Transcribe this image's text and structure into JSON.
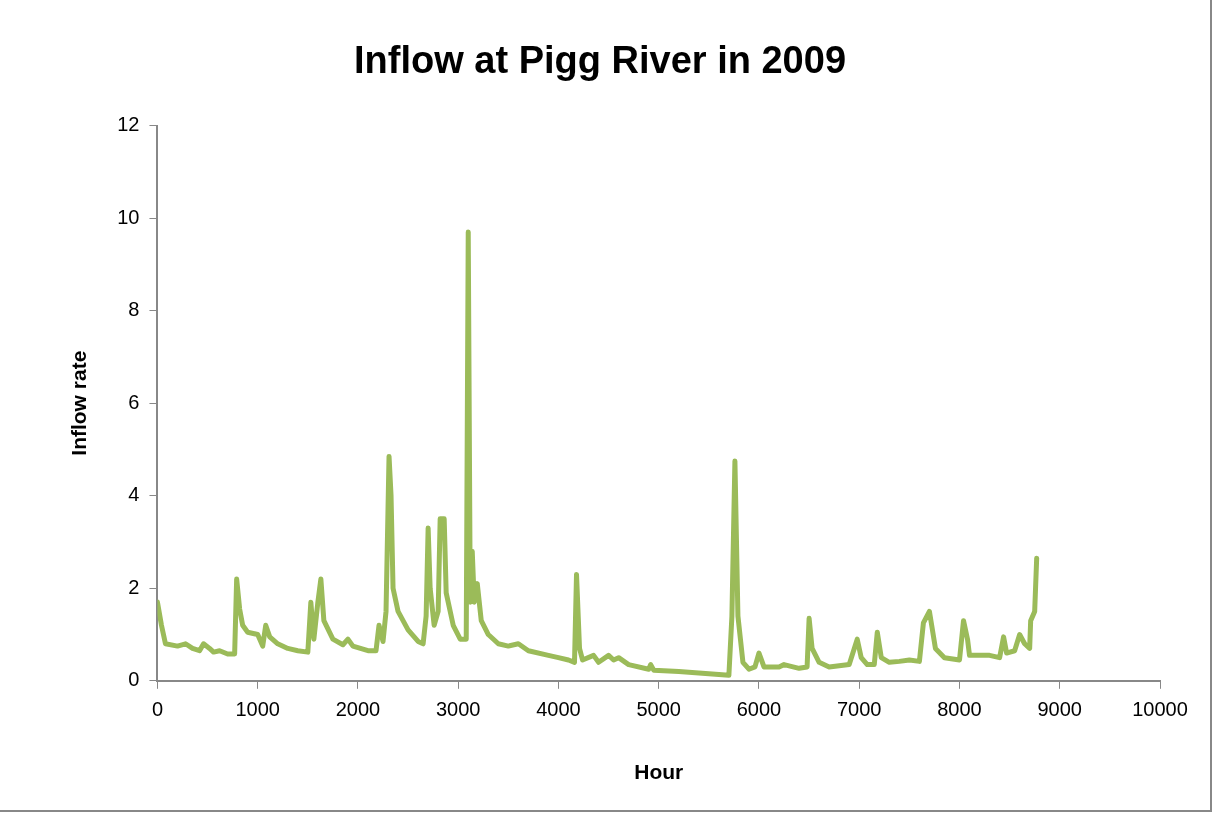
{
  "chart_data": {
    "type": "line",
    "title": "Inflow at Pigg River in 2009",
    "xlabel": "Hour",
    "ylabel": "Inflow rate",
    "xlim": [
      0,
      10000
    ],
    "xticks": [
      0,
      1000,
      2000,
      3000,
      4000,
      5000,
      6000,
      7000,
      8000,
      9000,
      10000
    ],
    "ylim": [
      0,
      12
    ],
    "yticks": [
      0,
      2,
      4,
      6,
      8,
      10,
      12
    ],
    "grid": false,
    "legend": false,
    "marker": "none",
    "line_style": "solid",
    "series": [
      {
        "color": "#9bbb59",
        "x": [
          0,
          40,
          80,
          200,
          280,
          350,
          420,
          460,
          520,
          560,
          620,
          700,
          770,
          790,
          820,
          850,
          900,
          1000,
          1050,
          1080,
          1120,
          1200,
          1300,
          1400,
          1500,
          1530,
          1560,
          1600,
          1630,
          1660,
          1750,
          1850,
          1900,
          1950,
          2100,
          2180,
          2210,
          2250,
          2280,
          2310,
          2330,
          2350,
          2400,
          2500,
          2600,
          2650,
          2680,
          2700,
          2720,
          2760,
          2800,
          2820,
          2860,
          2880,
          2950,
          3020,
          3080,
          3100,
          3120,
          3140,
          3160,
          3190,
          3230,
          3300,
          3400,
          3500,
          3600,
          3700,
          3900,
          4000,
          4100,
          4160,
          4180,
          4210,
          4240,
          4350,
          4400,
          4500,
          4550,
          4600,
          4700,
          4900,
          4920,
          4950,
          5200,
          5500,
          5700,
          5730,
          5760,
          5790,
          5840,
          5900,
          5960,
          6000,
          6050,
          6200,
          6250,
          6400,
          6480,
          6500,
          6530,
          6600,
          6700,
          6900,
          6980,
          7020,
          7080,
          7150,
          7180,
          7220,
          7300,
          7400,
          7500,
          7600,
          7640,
          7700,
          7760,
          7850,
          8000,
          8040,
          8080,
          8100,
          8300,
          8400,
          8440,
          8470,
          8550,
          8600,
          8650,
          8700,
          8710,
          8750,
          8770
        ],
        "values": [
          1.7,
          1.2,
          0.8,
          0.75,
          0.8,
          0.7,
          0.65,
          0.8,
          0.7,
          0.62,
          0.65,
          0.58,
          0.58,
          2.2,
          1.55,
          1.2,
          1.05,
          1.0,
          0.75,
          1.2,
          0.95,
          0.8,
          0.7,
          0.65,
          0.62,
          1.7,
          0.9,
          1.7,
          2.2,
          1.3,
          0.9,
          0.78,
          0.9,
          0.75,
          0.65,
          0.65,
          1.2,
          0.85,
          1.5,
          4.85,
          4.0,
          2.0,
          1.5,
          1.1,
          0.85,
          0.8,
          1.4,
          3.3,
          2.0,
          1.2,
          1.5,
          3.5,
          3.5,
          1.9,
          1.2,
          0.9,
          0.9,
          9.7,
          1.7,
          2.8,
          1.7,
          2.1,
          1.3,
          1.0,
          0.8,
          0.75,
          0.8,
          0.65,
          0.55,
          0.5,
          0.45,
          0.4,
          2.3,
          0.7,
          0.45,
          0.55,
          0.4,
          0.55,
          0.45,
          0.5,
          0.35,
          0.25,
          0.35,
          0.23,
          0.2,
          0.15,
          0.12,
          1.4,
          4.75,
          1.4,
          0.4,
          0.25,
          0.3,
          0.6,
          0.3,
          0.3,
          0.35,
          0.27,
          0.3,
          1.35,
          0.7,
          0.4,
          0.3,
          0.35,
          0.9,
          0.5,
          0.35,
          0.35,
          1.05,
          0.5,
          0.4,
          0.42,
          0.45,
          0.42,
          1.25,
          1.5,
          0.7,
          0.5,
          0.45,
          1.3,
          0.9,
          0.55,
          0.55,
          0.5,
          0.95,
          0.6,
          0.65,
          1.0,
          0.8,
          0.7,
          1.3,
          1.5,
          2.65
        ]
      }
    ]
  }
}
